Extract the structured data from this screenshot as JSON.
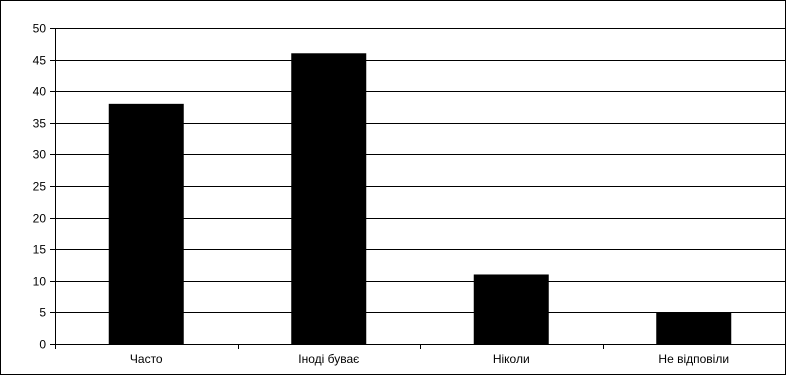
{
  "chart_data": {
    "type": "bar",
    "title": "",
    "xlabel": "",
    "ylabel": "",
    "categories": [
      "Часто",
      "Іноді буває",
      "Ніколи",
      "Не відповіли"
    ],
    "values": [
      38,
      46,
      11,
      5
    ],
    "ylim": [
      0,
      50
    ],
    "yticks": [
      "0",
      "5",
      "10",
      "15",
      "20",
      "25",
      "30",
      "35",
      "40",
      "45",
      "50"
    ],
    "grid": true,
    "legend": "none",
    "colors": {
      "bar": "#000000",
      "grid": "#000000",
      "background": "#ffffff"
    }
  }
}
